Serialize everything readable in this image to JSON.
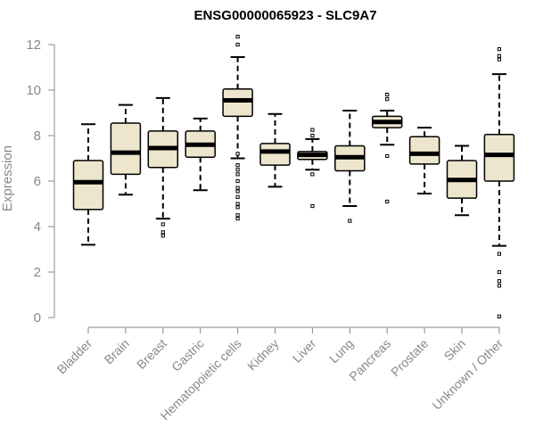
{
  "chart_data": {
    "type": "boxplot",
    "title": "ENSG00000065923 - SLC9A7",
    "xlabel": "",
    "ylabel": "Expression",
    "ylim": [
      0,
      12.4
    ],
    "yticks": [
      0,
      2,
      4,
      6,
      8,
      10,
      12
    ],
    "colors": {
      "box_fill": "#ede6cd",
      "stroke": "#000000",
      "axis": "#888888"
    },
    "categories": [
      "Bladder",
      "Brain",
      "Breast",
      "Gastric",
      "Hematopoietic cells",
      "Kidney",
      "Liver",
      "Lung",
      "Pancreas",
      "Prostate",
      "Skin",
      "Unknown / Other"
    ],
    "boxes": [
      {
        "name": "Bladder",
        "min": 3.2,
        "q1": 4.75,
        "median": 5.95,
        "q3": 6.9,
        "max": 8.5,
        "outliers": []
      },
      {
        "name": "Brain",
        "min": 5.4,
        "q1": 6.3,
        "median": 7.25,
        "q3": 8.55,
        "max": 9.35,
        "outliers": []
      },
      {
        "name": "Breast",
        "min": 4.35,
        "q1": 6.6,
        "median": 7.45,
        "q3": 8.2,
        "max": 9.65,
        "outliers": [
          4.1,
          3.75,
          3.6
        ]
      },
      {
        "name": "Gastric",
        "min": 5.6,
        "q1": 7.05,
        "median": 7.6,
        "q3": 8.2,
        "max": 8.75,
        "outliers": []
      },
      {
        "name": "Hematopoietic cells",
        "min": 7.0,
        "q1": 8.85,
        "median": 9.55,
        "q3": 10.05,
        "max": 11.45,
        "outliers": [
          12.0,
          12.35,
          7.2,
          6.7,
          6.5,
          6.3,
          6.0,
          5.7,
          5.55,
          5.3,
          5.0,
          4.85,
          4.5,
          4.35
        ]
      },
      {
        "name": "Kidney",
        "min": 5.75,
        "q1": 6.7,
        "median": 7.3,
        "q3": 7.65,
        "max": 8.95,
        "outliers": []
      },
      {
        "name": "Liver",
        "min": 6.5,
        "q1": 6.95,
        "median": 7.15,
        "q3": 7.3,
        "max": 7.85,
        "outliers": [
          8.25,
          8.0,
          6.3,
          4.9
        ]
      },
      {
        "name": "Lung",
        "min": 4.9,
        "q1": 6.45,
        "median": 7.05,
        "q3": 7.55,
        "max": 9.1,
        "outliers": [
          4.25
        ]
      },
      {
        "name": "Pancreas",
        "min": 7.6,
        "q1": 8.35,
        "median": 8.6,
        "q3": 8.85,
        "max": 9.1,
        "outliers": [
          9.8,
          9.6,
          7.1,
          5.1
        ]
      },
      {
        "name": "Prostate",
        "min": 5.45,
        "q1": 6.75,
        "median": 7.2,
        "q3": 7.95,
        "max": 8.35,
        "outliers": []
      },
      {
        "name": "Skin",
        "min": 4.5,
        "q1": 5.25,
        "median": 6.05,
        "q3": 6.9,
        "max": 7.55,
        "outliers": []
      },
      {
        "name": "Unknown / Other",
        "min": 3.15,
        "q1": 6.0,
        "median": 7.15,
        "q3": 8.05,
        "max": 10.7,
        "outliers": [
          11.8,
          11.5,
          11.35,
          2.8,
          2.0,
          1.6,
          1.4,
          0.05
        ]
      }
    ]
  }
}
